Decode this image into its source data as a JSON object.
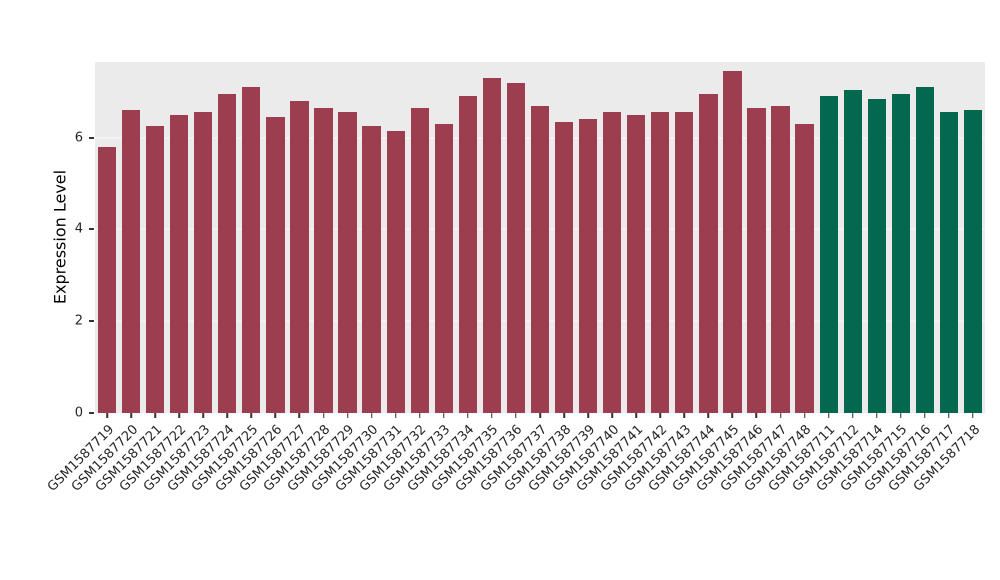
{
  "chart_data": {
    "type": "bar",
    "title": "",
    "xlabel": "",
    "ylabel": "Expression Level",
    "ylim": [
      0,
      7.65
    ],
    "yticks": [
      0,
      2,
      4,
      6
    ],
    "grid": "subtle white major gridlines on gray panel",
    "legend": "none",
    "panel_background": "#ebebeb",
    "palette": [
      "#9d3d50",
      "#03684e"
    ],
    "categories": [
      "GSM1587719",
      "GSM1587720",
      "GSM1587721",
      "GSM1587722",
      "GSM1587723",
      "GSM1587724",
      "GSM1587725",
      "GSM1587726",
      "GSM1587727",
      "GSM1587728",
      "GSM1587729",
      "GSM1587730",
      "GSM1587731",
      "GSM1587732",
      "GSM1587733",
      "GSM1587734",
      "GSM1587735",
      "GSM1587736",
      "GSM1587737",
      "GSM1587738",
      "GSM1587739",
      "GSM1587740",
      "GSM1587741",
      "GSM1587742",
      "GSM1587743",
      "GSM1587744",
      "GSM1587745",
      "GSM1587746",
      "GSM1587747",
      "GSM1587748",
      "GSM1587711",
      "GSM1587712",
      "GSM1587714",
      "GSM1587715",
      "GSM1587716",
      "GSM1587717",
      "GSM1587718"
    ],
    "values": [
      5.8,
      6.6,
      6.25,
      6.5,
      6.55,
      6.95,
      7.1,
      6.45,
      6.8,
      6.65,
      6.55,
      6.25,
      6.15,
      6.65,
      6.3,
      6.9,
      7.3,
      7.2,
      6.7,
      6.35,
      6.4,
      6.55,
      6.5,
      6.55,
      6.55,
      6.95,
      7.45,
      6.65,
      6.7,
      6.3,
      6.9,
      7.05,
      6.85,
      6.95,
      7.1,
      6.55,
      6.6
    ],
    "group": [
      0,
      0,
      0,
      0,
      0,
      0,
      0,
      0,
      0,
      0,
      0,
      0,
      0,
      0,
      0,
      0,
      0,
      0,
      0,
      0,
      0,
      0,
      0,
      0,
      0,
      0,
      0,
      0,
      0,
      0,
      1,
      1,
      1,
      1,
      1,
      1,
      1
    ]
  }
}
